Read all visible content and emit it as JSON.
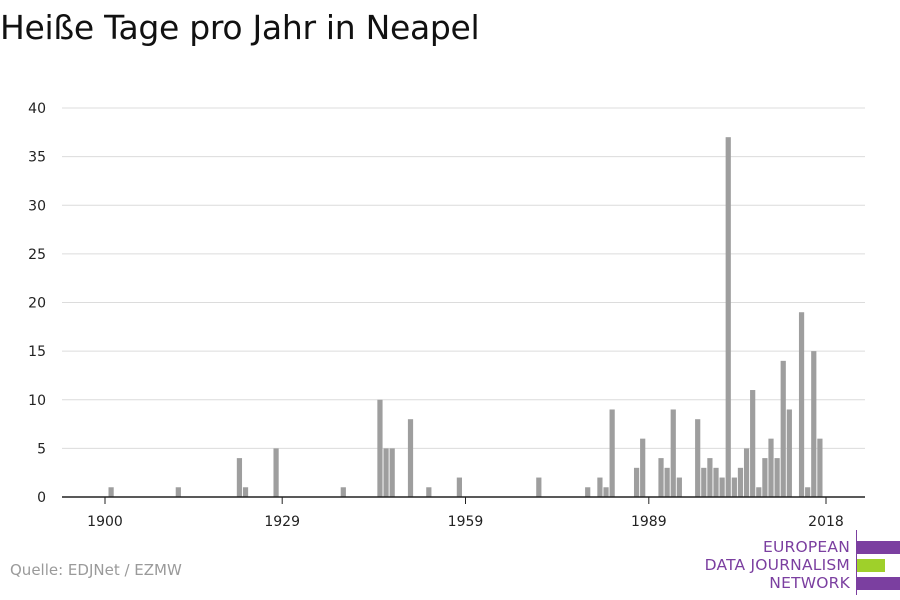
{
  "title": "Heiße Tage pro Jahr in Neapel",
  "source": "Quelle: EDJNet / EZMW",
  "logo": {
    "lines": [
      "EUROPEAN",
      "DATA JOURNALISM",
      "NETWORK"
    ],
    "colors": {
      "purple": "#7b3fa0",
      "green": "#9fd02a"
    }
  },
  "chart_data": {
    "type": "bar",
    "title": "Heiße Tage pro Jahr in Neapel",
    "xlabel": "",
    "ylabel": "",
    "x_ticks": [
      1900,
      1929,
      1959,
      1989,
      2018
    ],
    "y_ticks": [
      0,
      5,
      10,
      15,
      20,
      25,
      30,
      35,
      40
    ],
    "ylim": [
      0,
      40
    ],
    "xlim": [
      1899,
      2018
    ],
    "grid": true,
    "bar_color": "#9e9e9e",
    "x": [
      1901,
      1912,
      1922,
      1923,
      1928,
      1939,
      1945,
      1946,
      1947,
      1950,
      1953,
      1958,
      1971,
      1979,
      1981,
      1982,
      1983,
      1987,
      1988,
      1991,
      1992,
      1993,
      1994,
      1997,
      1998,
      1999,
      2000,
      2001,
      2002,
      2003,
      2004,
      2005,
      2006,
      2007,
      2008,
      2009,
      2010,
      2011,
      2012,
      2013,
      2014,
      2015,
      2016,
      2017,
      2018
    ],
    "values": [
      1,
      1,
      4,
      1,
      5,
      1,
      10,
      5,
      5,
      8,
      1,
      2,
      2,
      1,
      2,
      1,
      9,
      3,
      6,
      4,
      3,
      9,
      2,
      8,
      3,
      4,
      3,
      2,
      37,
      2,
      3,
      5,
      11,
      1,
      4,
      6,
      4,
      14,
      9,
      0,
      19,
      1,
      15,
      6,
      0
    ]
  }
}
